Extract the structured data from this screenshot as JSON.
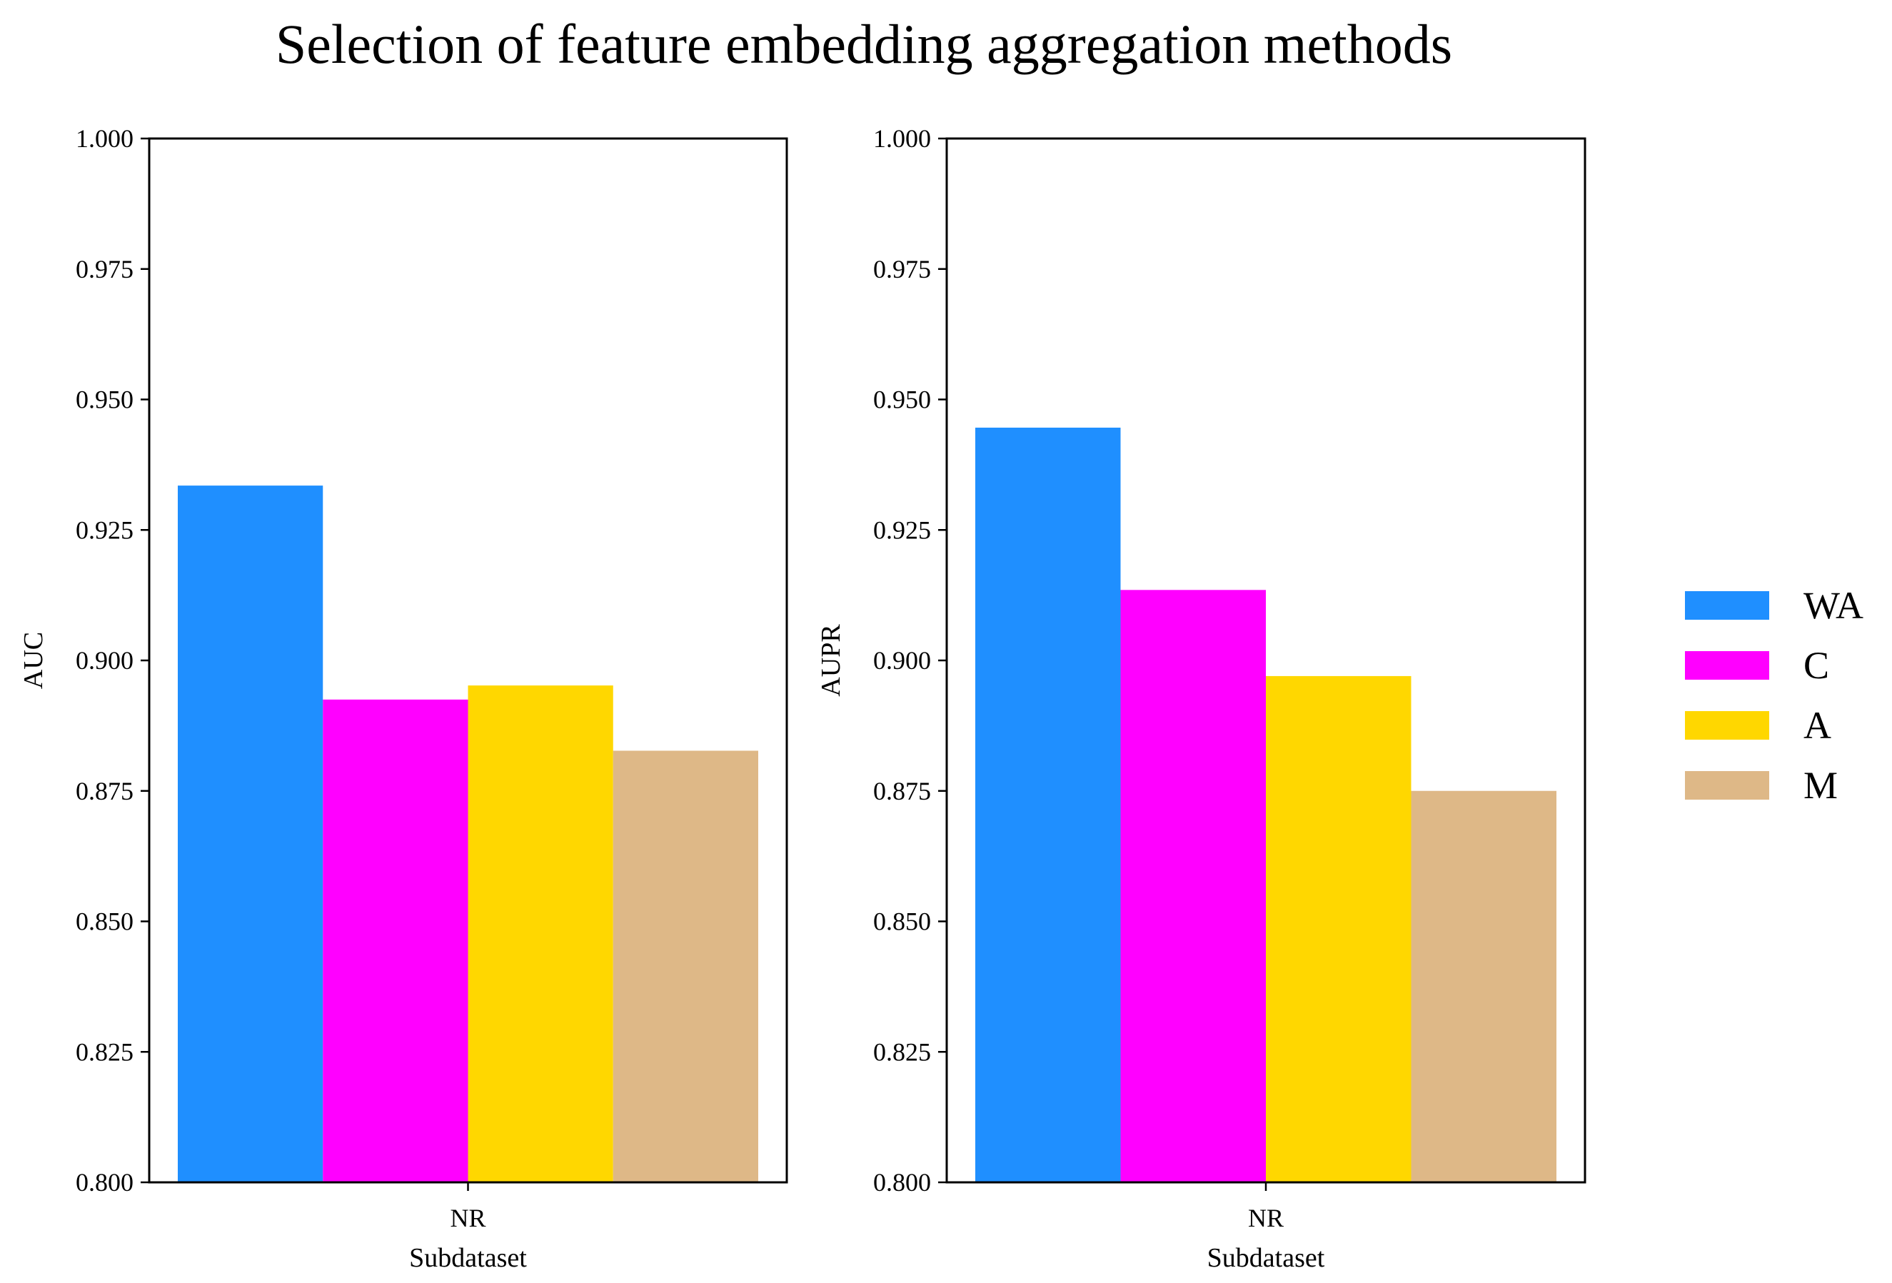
{
  "chart_data": {
    "title": "Selection of feature embedding aggregation methods",
    "type": "bar",
    "legend": {
      "placement": "right",
      "entries": [
        {
          "name": "WA",
          "color": "#1f8fff"
        },
        {
          "name": "C",
          "color": "#ff00ff"
        },
        {
          "name": "A",
          "color": "#ffd700"
        },
        {
          "name": "M",
          "color": "#deb887"
        }
      ]
    },
    "subplots": [
      {
        "categories": [
          "NR"
        ],
        "xlabel": "Subdataset",
        "ylabel": "AUC",
        "ylim": [
          0.8,
          1.0
        ],
        "yticks": [
          "0.800",
          "0.825",
          "0.850",
          "0.875",
          "0.900",
          "0.925",
          "0.950",
          "0.975",
          "1.000"
        ],
        "series": [
          {
            "name": "WA",
            "values": [
              0.9335
            ]
          },
          {
            "name": "C",
            "values": [
              0.8925
            ]
          },
          {
            "name": "A",
            "values": [
              0.8952
            ]
          },
          {
            "name": "M",
            "values": [
              0.8827
            ]
          }
        ]
      },
      {
        "categories": [
          "NR"
        ],
        "xlabel": "Subdataset",
        "ylabel": "AUPR",
        "ylim": [
          0.8,
          1.0
        ],
        "yticks": [
          "0.800",
          "0.825",
          "0.850",
          "0.875",
          "0.900",
          "0.925",
          "0.950",
          "0.975",
          "1.000"
        ],
        "series": [
          {
            "name": "WA",
            "values": [
              0.9446
            ]
          },
          {
            "name": "C",
            "values": [
              0.9135
            ]
          },
          {
            "name": "A",
            "values": [
              0.897
            ]
          },
          {
            "name": "M",
            "values": [
              0.875
            ]
          }
        ]
      }
    ],
    "grid": false
  }
}
